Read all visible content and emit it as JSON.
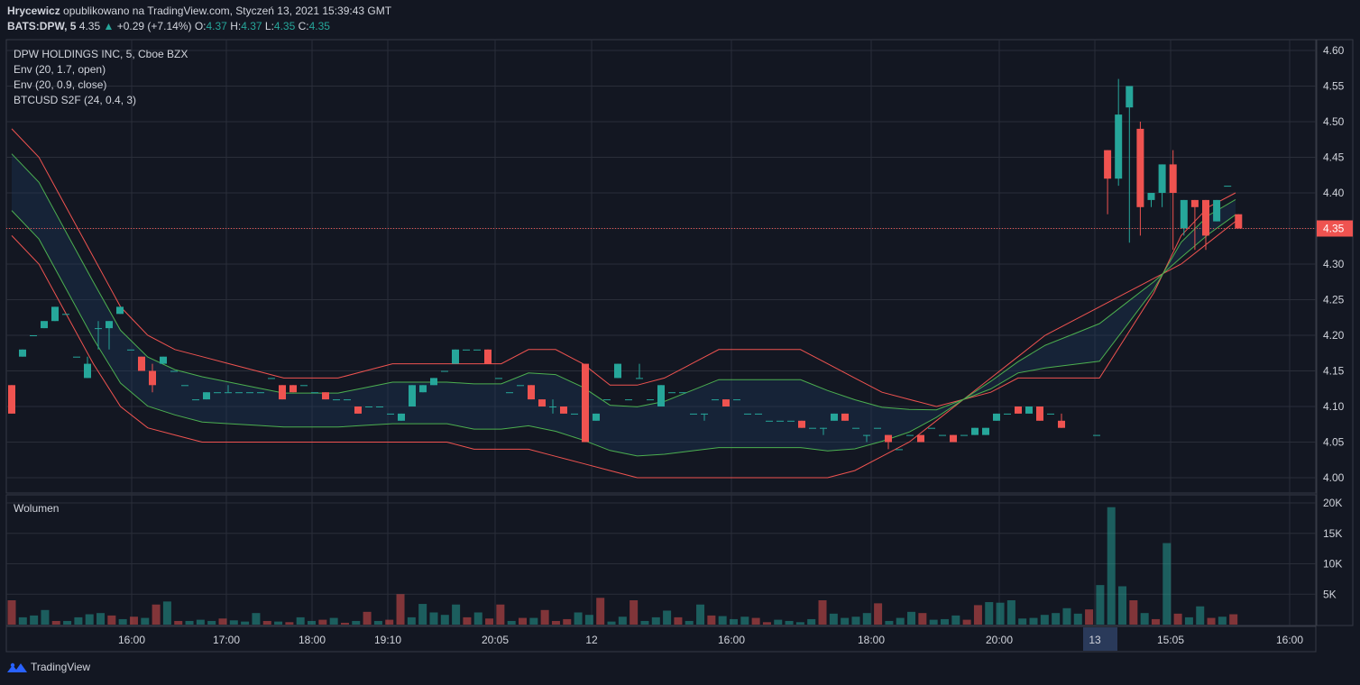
{
  "header": {
    "author": "Hrycewicz",
    "published": "opublikowano na TradingView.com, Styczeń 13, 2021 15:39:43 GMT",
    "symbol": "BATS:DPW, 5",
    "last": "4.35",
    "change": "+0.29 (+7.14%)",
    "o_label": "O:",
    "o": "4.37",
    "h_label": "H:",
    "h": "4.37",
    "l_label": "L:",
    "l": "4.35",
    "c_label": "C:",
    "c": "4.35"
  },
  "legend": {
    "title": "DPW HOLDINGS INC, 5, Cboe BZX",
    "ind1": "Env (20, 1.7, open)",
    "ind2": "Env (20, 0.9, close)",
    "ind3": "BTCUSD S2F (24, 0.4, 3)",
    "volume": "Wolumen"
  },
  "colors": {
    "background": "#131722",
    "up": "#26a69a",
    "down": "#ef5350",
    "env_outer": "#ef5350",
    "env_inner": "#4caf50",
    "grid": "#2a2e39"
  },
  "footer": {
    "brand": "TradingView"
  },
  "chart_data": [
    {
      "type": "candlestick",
      "title": "DPW HOLDINGS INC, 5, Cboe BZX",
      "ylim": [
        3.97,
        4.62
      ],
      "y_ticks": [
        "4.60",
        "4.55",
        "4.50",
        "4.45",
        "4.40",
        "4.35",
        "4.30",
        "4.25",
        "4.20",
        "4.15",
        "4.10",
        "4.05",
        "4.00"
      ],
      "last_price": "4.35",
      "x_ticks": [
        "16:00",
        "17:00",
        "18:00",
        "19:10",
        "20:05",
        "12",
        "16:00",
        "18:00",
        "20:00",
        "13",
        "15:05",
        "16:00"
      ],
      "candles": [
        {
          "o": 4.13,
          "h": 4.13,
          "l": 4.09,
          "c": 4.09
        },
        {
          "o": 4.17,
          "h": 4.18,
          "l": 4.17,
          "c": 4.18
        },
        {
          "o": 4.2,
          "h": 4.2,
          "l": 4.2,
          "c": 4.2
        },
        {
          "o": 4.21,
          "h": 4.22,
          "l": 4.21,
          "c": 4.22
        },
        {
          "o": 4.22,
          "h": 4.24,
          "l": 4.22,
          "c": 4.24
        },
        {
          "o": 4.23,
          "h": 4.23,
          "l": 4.23,
          "c": 4.23
        },
        {
          "o": 4.17,
          "h": 4.17,
          "l": 4.17,
          "c": 4.17
        },
        {
          "o": 4.14,
          "h": 4.17,
          "l": 4.14,
          "c": 4.16
        },
        {
          "o": 4.21,
          "h": 4.22,
          "l": 4.18,
          "c": 4.21
        },
        {
          "o": 4.21,
          "h": 4.22,
          "l": 4.18,
          "c": 4.22
        },
        {
          "o": 4.23,
          "h": 4.24,
          "l": 4.23,
          "c": 4.24
        },
        {
          "o": 4.18,
          "h": 4.18,
          "l": 4.18,
          "c": 4.18
        },
        {
          "o": 4.17,
          "h": 4.17,
          "l": 4.15,
          "c": 4.15
        },
        {
          "o": 4.15,
          "h": 4.16,
          "l": 4.12,
          "c": 4.13
        },
        {
          "o": 4.16,
          "h": 4.17,
          "l": 4.16,
          "c": 4.17
        },
        {
          "o": 4.15,
          "h": 4.15,
          "l": 4.15,
          "c": 4.15
        },
        {
          "o": 4.13,
          "h": 4.13,
          "l": 4.13,
          "c": 4.13
        },
        {
          "o": 4.11,
          "h": 4.11,
          "l": 4.11,
          "c": 4.11
        },
        {
          "o": 4.11,
          "h": 4.12,
          "l": 4.11,
          "c": 4.12
        },
        {
          "o": 4.12,
          "h": 4.12,
          "l": 4.12,
          "c": 4.12
        },
        {
          "o": 4.12,
          "h": 4.13,
          "l": 4.12,
          "c": 4.12
        },
        {
          "o": 4.12,
          "h": 4.12,
          "l": 4.12,
          "c": 4.12
        },
        {
          "o": 4.12,
          "h": 4.12,
          "l": 4.12,
          "c": 4.12
        },
        {
          "o": 4.12,
          "h": 4.12,
          "l": 4.12,
          "c": 4.12
        },
        {
          "o": 4.14,
          "h": 4.14,
          "l": 4.14,
          "c": 4.14
        },
        {
          "o": 4.13,
          "h": 4.13,
          "l": 4.11,
          "c": 4.11
        },
        {
          "o": 4.13,
          "h": 4.13,
          "l": 4.12,
          "c": 4.12
        },
        {
          "o": 4.13,
          "h": 4.13,
          "l": 4.13,
          "c": 4.13
        },
        {
          "o": 4.12,
          "h": 4.12,
          "l": 4.12,
          "c": 4.12
        },
        {
          "o": 4.12,
          "h": 4.12,
          "l": 4.11,
          "c": 4.11
        },
        {
          "o": 4.11,
          "h": 4.11,
          "l": 4.11,
          "c": 4.11
        },
        {
          "o": 4.11,
          "h": 4.11,
          "l": 4.11,
          "c": 4.11
        },
        {
          "o": 4.1,
          "h": 4.1,
          "l": 4.09,
          "c": 4.09
        },
        {
          "o": 4.1,
          "h": 4.1,
          "l": 4.1,
          "c": 4.1
        },
        {
          "o": 4.1,
          "h": 4.1,
          "l": 4.1,
          "c": 4.1
        },
        {
          "o": 4.09,
          "h": 4.09,
          "l": 4.09,
          "c": 4.09
        },
        {
          "o": 4.08,
          "h": 4.09,
          "l": 4.08,
          "c": 4.09
        },
        {
          "o": 4.1,
          "h": 4.13,
          "l": 4.1,
          "c": 4.13
        },
        {
          "o": 4.12,
          "h": 4.13,
          "l": 4.12,
          "c": 4.13
        },
        {
          "o": 4.13,
          "h": 4.14,
          "l": 4.13,
          "c": 4.14
        },
        {
          "o": 4.15,
          "h": 4.15,
          "l": 4.15,
          "c": 4.15
        },
        {
          "o": 4.16,
          "h": 4.18,
          "l": 4.16,
          "c": 4.18
        },
        {
          "o": 4.18,
          "h": 4.18,
          "l": 4.18,
          "c": 4.18
        },
        {
          "o": 4.18,
          "h": 4.18,
          "l": 4.18,
          "c": 4.18
        },
        {
          "o": 4.18,
          "h": 4.18,
          "l": 4.16,
          "c": 4.16
        },
        {
          "o": 4.14,
          "h": 4.14,
          "l": 4.14,
          "c": 4.14
        },
        {
          "o": 4.12,
          "h": 4.12,
          "l": 4.12,
          "c": 4.12
        },
        {
          "o": 4.13,
          "h": 4.13,
          "l": 4.13,
          "c": 4.13
        },
        {
          "o": 4.13,
          "h": 4.13,
          "l": 4.11,
          "c": 4.11
        },
        {
          "o": 4.11,
          "h": 4.11,
          "l": 4.1,
          "c": 4.1
        },
        {
          "o": 4.1,
          "h": 4.11,
          "l": 4.09,
          "c": 4.1
        },
        {
          "o": 4.1,
          "h": 4.1,
          "l": 4.09,
          "c": 4.09
        },
        {
          "o": 4.09,
          "h": 4.09,
          "l": 4.09,
          "c": 4.09
        },
        {
          "o": 4.16,
          "h": 4.16,
          "l": 4.05,
          "c": 4.05
        },
        {
          "o": 4.08,
          "h": 4.09,
          "l": 4.08,
          "c": 4.09
        },
        {
          "o": 4.11,
          "h": 4.11,
          "l": 4.11,
          "c": 4.11
        },
        {
          "o": 4.14,
          "h": 4.16,
          "l": 4.14,
          "c": 4.16
        },
        {
          "o": 4.11,
          "h": 4.11,
          "l": 4.11,
          "c": 4.11
        },
        {
          "o": 4.14,
          "h": 4.16,
          "l": 4.14,
          "c": 4.14
        },
        {
          "o": 4.11,
          "h": 4.11,
          "l": 4.11,
          "c": 4.11
        },
        {
          "o": 4.1,
          "h": 4.13,
          "l": 4.1,
          "c": 4.13
        },
        {
          "o": 4.12,
          "h": 4.12,
          "l": 4.12,
          "c": 4.12
        },
        {
          "o": 4.12,
          "h": 4.12,
          "l": 4.12,
          "c": 4.12
        },
        {
          "o": 4.09,
          "h": 4.09,
          "l": 4.09,
          "c": 4.09
        },
        {
          "o": 4.09,
          "h": 4.09,
          "l": 4.08,
          "c": 4.09
        },
        {
          "o": 4.11,
          "h": 4.11,
          "l": 4.11,
          "c": 4.11
        },
        {
          "o": 4.11,
          "h": 4.11,
          "l": 4.1,
          "c": 4.1
        },
        {
          "o": 4.11,
          "h": 4.11,
          "l": 4.11,
          "c": 4.11
        },
        {
          "o": 4.09,
          "h": 4.09,
          "l": 4.09,
          "c": 4.09
        },
        {
          "o": 4.09,
          "h": 4.09,
          "l": 4.09,
          "c": 4.09
        },
        {
          "o": 4.08,
          "h": 4.08,
          "l": 4.08,
          "c": 4.08
        },
        {
          "o": 4.08,
          "h": 4.08,
          "l": 4.08,
          "c": 4.08
        },
        {
          "o": 4.08,
          "h": 4.08,
          "l": 4.08,
          "c": 4.08
        },
        {
          "o": 4.08,
          "h": 4.08,
          "l": 4.07,
          "c": 4.07
        },
        {
          "o": 4.07,
          "h": 4.07,
          "l": 4.07,
          "c": 4.07
        },
        {
          "o": 4.07,
          "h": 4.07,
          "l": 4.06,
          "c": 4.07
        },
        {
          "o": 4.08,
          "h": 4.09,
          "l": 4.08,
          "c": 4.09
        },
        {
          "o": 4.09,
          "h": 4.09,
          "l": 4.08,
          "c": 4.08
        },
        {
          "o": 4.07,
          "h": 4.07,
          "l": 4.07,
          "c": 4.07
        },
        {
          "o": 4.06,
          "h": 4.06,
          "l": 4.05,
          "c": 4.06
        },
        {
          "o": 4.07,
          "h": 4.07,
          "l": 4.07,
          "c": 4.07
        },
        {
          "o": 4.06,
          "h": 4.06,
          "l": 4.04,
          "c": 4.05
        },
        {
          "o": 4.04,
          "h": 4.04,
          "l": 4.04,
          "c": 4.04
        },
        {
          "o": 4.06,
          "h": 4.06,
          "l": 4.06,
          "c": 4.06
        },
        {
          "o": 4.06,
          "h": 4.06,
          "l": 4.05,
          "c": 4.05
        },
        {
          "o": 4.07,
          "h": 4.07,
          "l": 4.07,
          "c": 4.07
        },
        {
          "o": 4.06,
          "h": 4.06,
          "l": 4.06,
          "c": 4.06
        },
        {
          "o": 4.06,
          "h": 4.06,
          "l": 4.05,
          "c": 4.05
        },
        {
          "o": 4.06,
          "h": 4.06,
          "l": 4.06,
          "c": 4.06
        },
        {
          "o": 4.06,
          "h": 4.07,
          "l": 4.06,
          "c": 4.07
        },
        {
          "o": 4.06,
          "h": 4.07,
          "l": 4.06,
          "c": 4.07
        },
        {
          "o": 4.08,
          "h": 4.09,
          "l": 4.08,
          "c": 4.09
        },
        {
          "o": 4.09,
          "h": 4.09,
          "l": 4.09,
          "c": 4.09
        },
        {
          "o": 4.1,
          "h": 4.1,
          "l": 4.09,
          "c": 4.09
        },
        {
          "o": 4.09,
          "h": 4.1,
          "l": 4.09,
          "c": 4.1
        },
        {
          "o": 4.1,
          "h": 4.1,
          "l": 4.08,
          "c": 4.08
        },
        {
          "o": 4.09,
          "h": 4.09,
          "l": 4.09,
          "c": 4.09
        },
        {
          "o": 4.08,
          "h": 4.09,
          "l": 4.07,
          "c": 4.07
        },
        {
          "o": 4.06,
          "h": 4.06,
          "l": 4.06,
          "c": 4.06
        },
        {
          "o": 4.46,
          "h": 4.46,
          "l": 4.37,
          "c": 4.42
        },
        {
          "o": 4.42,
          "h": 4.56,
          "l": 4.41,
          "c": 4.51
        },
        {
          "o": 4.52,
          "h": 4.55,
          "l": 4.33,
          "c": 4.55
        },
        {
          "o": 4.49,
          "h": 4.5,
          "l": 4.34,
          "c": 4.38
        },
        {
          "o": 4.39,
          "h": 4.4,
          "l": 4.38,
          "c": 4.4
        },
        {
          "o": 4.4,
          "h": 4.44,
          "l": 4.38,
          "c": 4.44
        },
        {
          "o": 4.44,
          "h": 4.46,
          "l": 4.32,
          "c": 4.4
        },
        {
          "o": 4.35,
          "h": 4.39,
          "l": 4.34,
          "c": 4.39
        },
        {
          "o": 4.39,
          "h": 4.39,
          "l": 4.32,
          "c": 4.38
        },
        {
          "o": 4.39,
          "h": 4.39,
          "l": 4.32,
          "c": 4.34
        },
        {
          "o": 4.36,
          "h": 4.39,
          "l": 4.36,
          "c": 4.39
        },
        {
          "o": 4.41,
          "h": 4.41,
          "l": 4.41,
          "c": 4.41
        },
        {
          "o": 4.37,
          "h": 4.37,
          "l": 4.35,
          "c": 4.35
        }
      ],
      "env_open_upper": [
        4.49,
        4.45,
        4.38,
        4.31,
        4.24,
        4.2,
        4.18,
        4.17,
        4.16,
        4.15,
        4.14,
        4.14,
        4.14,
        4.15,
        4.16,
        4.16,
        4.16,
        4.16,
        4.16,
        4.18,
        4.18,
        4.16,
        4.13,
        4.13,
        4.14,
        4.16,
        4.18,
        4.18,
        4.18,
        4.18,
        4.16,
        4.14,
        4.12,
        4.11,
        4.1,
        4.11,
        4.12,
        4.14,
        4.14,
        4.14,
        4.14,
        4.2,
        4.26,
        4.34,
        4.38,
        4.4
      ],
      "env_open_lower": [
        4.34,
        4.3,
        4.23,
        4.16,
        4.1,
        4.07,
        4.06,
        4.05,
        4.05,
        4.05,
        4.05,
        4.05,
        4.05,
        4.05,
        4.05,
        4.05,
        4.05,
        4.04,
        4.04,
        4.04,
        4.03,
        4.02,
        4.01,
        4.0,
        4.0,
        4.0,
        4.0,
        4.0,
        4.0,
        4.0,
        4.0,
        4.01,
        4.03,
        4.05,
        4.08,
        4.11,
        4.14,
        4.17,
        4.2,
        4.22,
        4.24,
        4.26,
        4.28,
        4.3,
        4.33,
        4.36
      ]
    },
    {
      "type": "bar",
      "title": "Wolumen",
      "ylim": [
        0,
        20000
      ],
      "y_ticks": [
        "20K",
        "15K",
        "10K",
        "5K"
      ],
      "values": [
        4000,
        1200,
        1500,
        2400,
        600,
        600,
        1200,
        1700,
        1900,
        1500,
        900,
        1300,
        1100,
        3300,
        3800,
        600,
        600,
        800,
        600,
        1000,
        700,
        500,
        1900,
        600,
        500,
        400,
        1200,
        600,
        800,
        1100,
        300,
        600,
        2100,
        600,
        800,
        5000,
        1200,
        3400,
        2000,
        1600,
        3300,
        1200,
        2000,
        1000,
        3300,
        600,
        1100,
        1100,
        2400,
        600,
        900,
        2000,
        1600,
        4400,
        500,
        1300,
        4000,
        600,
        1200,
        2300,
        1200,
        600,
        3300,
        1500,
        1400,
        900,
        1300,
        1100,
        400,
        800,
        600,
        400,
        900,
        4000,
        1800,
        1100,
        1300,
        1900,
        3500,
        600,
        1100,
        2100,
        1900,
        800,
        900,
        1500,
        800,
        3200,
        3700,
        3600,
        4000,
        1000,
        1100,
        1600,
        1900,
        2700,
        1800,
        2500,
        6500,
        19300,
        6300,
        4000,
        1900,
        900,
        13400,
        1800,
        1200,
        3000,
        1100,
        1300,
        1700
      ],
      "up": [
        0,
        1,
        1,
        1,
        0,
        1,
        1,
        1,
        1,
        0,
        1,
        0,
        1,
        0,
        1,
        0,
        1,
        1,
        1,
        0,
        1,
        1,
        1,
        0,
        1,
        0,
        1,
        1,
        0,
        1,
        0,
        1,
        0,
        1,
        0,
        0,
        1,
        1,
        1,
        1,
        1,
        0,
        1,
        0,
        0,
        1,
        0,
        1,
        0,
        0,
        0,
        1,
        1,
        0,
        1,
        1,
        0,
        1,
        1,
        1,
        0,
        1,
        1,
        0,
        1,
        1,
        1,
        0,
        0,
        1,
        1,
        1,
        1,
        0,
        1,
        1,
        1,
        1,
        0,
        1,
        1,
        1,
        0,
        1,
        1,
        1,
        0,
        0,
        1,
        1,
        1,
        1,
        1,
        1,
        1,
        1,
        1,
        0,
        1,
        1,
        1,
        0,
        1,
        0,
        1,
        0,
        1,
        1,
        0,
        1,
        0
      ]
    }
  ]
}
